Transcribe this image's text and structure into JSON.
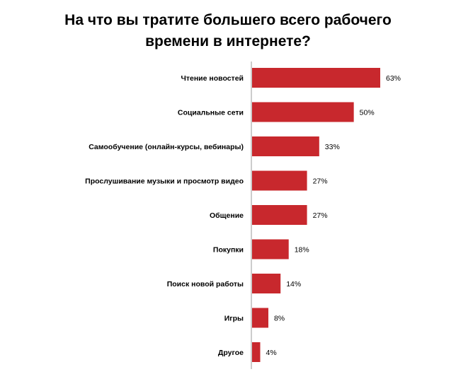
{
  "chart_data": {
    "type": "bar",
    "orientation": "horizontal",
    "title_lines": [
      "На что вы тратите большего всего рабочего",
      "времени в интернете?"
    ],
    "categories": [
      "Чтение новостей",
      "Социальные  сети",
      "Самообучение  (онлайн-курсы,  вебинары)",
      "Прослушивание  музыки и просмотр видео",
      "Общение",
      "Покупки",
      "Поиск  новой работы",
      "Игры",
      "Другое"
    ],
    "values": [
      63,
      50,
      33,
      27,
      27,
      18,
      14,
      8,
      4
    ],
    "value_labels": [
      "63%",
      "50%",
      "33%",
      "27%",
      "27%",
      "18%",
      "14%",
      "8%",
      "4%"
    ],
    "unit": "%",
    "xlim": [
      0,
      63
    ],
    "grid": false,
    "legend": "none",
    "colors": {
      "bar": "#c8282d",
      "axis": "#999999",
      "text": "#000000"
    }
  }
}
